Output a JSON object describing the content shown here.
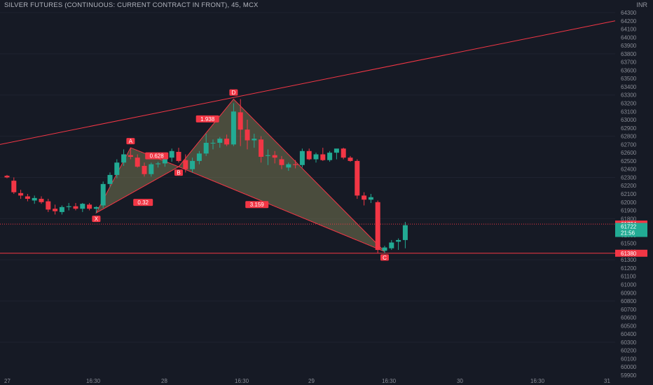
{
  "chart_data": {
    "type": "candlestick",
    "title": "SILVER FUTURES (CONTINUOUS: CURRENT CONTRACT IN FRONT), 45, MCX",
    "y_unit": "INR",
    "ylim": [
      59900,
      64300
    ],
    "y_ticks": [
      64300,
      64200,
      64100,
      64000,
      63900,
      63800,
      63700,
      63600,
      63500,
      63400,
      63300,
      63200,
      63100,
      63000,
      62900,
      62800,
      62700,
      62600,
      62500,
      62400,
      62300,
      62200,
      62100,
      62000,
      61900,
      61800,
      61700,
      61600,
      61500,
      61400,
      61300,
      61200,
      61100,
      61000,
      60900,
      60800,
      60700,
      60600,
      60500,
      60400,
      60300,
      60200,
      60100,
      60000,
      59900
    ],
    "x_ticks": [
      "27",
      "16:30",
      "28",
      "16:30",
      "29",
      "16:30",
      "30",
      "16:30",
      "31"
    ],
    "candles": [
      {
        "o": 62320,
        "h": 62330,
        "l": 62290,
        "c": 62300
      },
      {
        "o": 62260,
        "h": 62300,
        "l": 62100,
        "c": 62120
      },
      {
        "o": 62110,
        "h": 62150,
        "l": 62040,
        "c": 62080
      },
      {
        "o": 62070,
        "h": 62100,
        "l": 62010,
        "c": 62040
      },
      {
        "o": 62020,
        "h": 62080,
        "l": 61980,
        "c": 62050
      },
      {
        "o": 62040,
        "h": 62070,
        "l": 61980,
        "c": 62000
      },
      {
        "o": 62010,
        "h": 62040,
        "l": 61880,
        "c": 61910
      },
      {
        "o": 61920,
        "h": 61970,
        "l": 61850,
        "c": 61890
      },
      {
        "o": 61880,
        "h": 61960,
        "l": 61850,
        "c": 61940
      },
      {
        "o": 61940,
        "h": 61990,
        "l": 61900,
        "c": 61950
      },
      {
        "o": 61950,
        "h": 61990,
        "l": 61900,
        "c": 61920
      },
      {
        "o": 61920,
        "h": 61990,
        "l": 61880,
        "c": 61980
      },
      {
        "o": 61970,
        "h": 61990,
        "l": 61900,
        "c": 61920
      },
      {
        "o": 61920,
        "h": 61950,
        "l": 61870,
        "c": 61940
      },
      {
        "o": 61960,
        "h": 62250,
        "l": 61930,
        "c": 62220
      },
      {
        "o": 62220,
        "h": 62360,
        "l": 62180,
        "c": 62330
      },
      {
        "o": 62330,
        "h": 62520,
        "l": 62290,
        "c": 62480
      },
      {
        "o": 62480,
        "h": 62640,
        "l": 62440,
        "c": 62580
      },
      {
        "o": 62570,
        "h": 62660,
        "l": 62520,
        "c": 62550
      },
      {
        "o": 62540,
        "h": 62580,
        "l": 62420,
        "c": 62430
      },
      {
        "o": 62440,
        "h": 62480,
        "l": 62310,
        "c": 62340
      },
      {
        "o": 62340,
        "h": 62480,
        "l": 62310,
        "c": 62460
      },
      {
        "o": 62460,
        "h": 62490,
        "l": 62420,
        "c": 62470
      },
      {
        "o": 62470,
        "h": 62580,
        "l": 62430,
        "c": 62540
      },
      {
        "o": 62540,
        "h": 62650,
        "l": 62490,
        "c": 62620
      },
      {
        "o": 62610,
        "h": 62660,
        "l": 62480,
        "c": 62500
      },
      {
        "o": 62510,
        "h": 62580,
        "l": 62360,
        "c": 62400
      },
      {
        "o": 62400,
        "h": 62540,
        "l": 62360,
        "c": 62500
      },
      {
        "o": 62500,
        "h": 62620,
        "l": 62460,
        "c": 62590
      },
      {
        "o": 62590,
        "h": 62830,
        "l": 62560,
        "c": 62720
      },
      {
        "o": 62720,
        "h": 62760,
        "l": 62640,
        "c": 62720
      },
      {
        "o": 62720,
        "h": 62790,
        "l": 62660,
        "c": 62770
      },
      {
        "o": 62770,
        "h": 62820,
        "l": 62680,
        "c": 62700
      },
      {
        "o": 62700,
        "h": 63200,
        "l": 62680,
        "c": 63100
      },
      {
        "o": 63090,
        "h": 63250,
        "l": 62680,
        "c": 62880
      },
      {
        "o": 62880,
        "h": 63000,
        "l": 62640,
        "c": 62750
      },
      {
        "o": 62750,
        "h": 62830,
        "l": 62660,
        "c": 62770
      },
      {
        "o": 62760,
        "h": 62800,
        "l": 62480,
        "c": 62550
      },
      {
        "o": 62560,
        "h": 62640,
        "l": 62450,
        "c": 62570
      },
      {
        "o": 62570,
        "h": 62620,
        "l": 62470,
        "c": 62540
      },
      {
        "o": 62520,
        "h": 62560,
        "l": 62400,
        "c": 62450
      },
      {
        "o": 62420,
        "h": 62480,
        "l": 62380,
        "c": 62460
      },
      {
        "o": 62460,
        "h": 62510,
        "l": 62410,
        "c": 62450
      },
      {
        "o": 62450,
        "h": 62650,
        "l": 62420,
        "c": 62620
      },
      {
        "o": 62620,
        "h": 62650,
        "l": 62510,
        "c": 62520
      },
      {
        "o": 62520,
        "h": 62600,
        "l": 62480,
        "c": 62580
      },
      {
        "o": 62580,
        "h": 62660,
        "l": 62500,
        "c": 62510
      },
      {
        "o": 62510,
        "h": 62620,
        "l": 62490,
        "c": 62600
      },
      {
        "o": 62600,
        "h": 62640,
        "l": 62520,
        "c": 62650
      },
      {
        "o": 62650,
        "h": 62660,
        "l": 62520,
        "c": 62540
      },
      {
        "o": 62540,
        "h": 62560,
        "l": 62490,
        "c": 62500
      },
      {
        "o": 62500,
        "h": 62520,
        "l": 62040,
        "c": 62080
      },
      {
        "o": 62080,
        "h": 62120,
        "l": 61960,
        "c": 62030
      },
      {
        "o": 62030,
        "h": 62100,
        "l": 61990,
        "c": 62060
      },
      {
        "o": 62000,
        "h": 62020,
        "l": 61380,
        "c": 61420
      },
      {
        "o": 61410,
        "h": 61470,
        "l": 61380,
        "c": 61450
      },
      {
        "o": 61440,
        "h": 61540,
        "l": 61420,
        "c": 61510
      },
      {
        "o": 61520,
        "h": 61560,
        "l": 61420,
        "c": 61540
      },
      {
        "o": 61540,
        "h": 61760,
        "l": 61440,
        "c": 61720
      }
    ],
    "pattern_points": [
      {
        "label": "X",
        "candle": 13,
        "price": 61870
      },
      {
        "label": "A",
        "candle": 18,
        "price": 62660
      },
      {
        "label": "B",
        "candle": 25,
        "price": 62430
      },
      {
        "label": "D",
        "candle": 33,
        "price": 63250
      },
      {
        "label": "C",
        "candle": 55,
        "price": 61400
      }
    ],
    "ratio_labels": [
      {
        "text": "0.32",
        "near": "XB"
      },
      {
        "text": "0.628",
        "near": "AB"
      },
      {
        "text": "1.938",
        "near": "BD"
      },
      {
        "text": "3.159",
        "near": "BC"
      }
    ],
    "trendline": {
      "from_price": 62700,
      "to_price": 64200
    },
    "levels": [
      {
        "price": 61734,
        "label": "61734",
        "color": "#f23645",
        "style": "dotted"
      },
      {
        "price": 61380,
        "label": "61380",
        "color": "#f23645",
        "style": "solid"
      }
    ],
    "last_price": {
      "value": "61722",
      "countdown": "21:56",
      "color": "#22ab94"
    },
    "colors": {
      "up": "#22ab94",
      "down": "#f23645",
      "pattern_fill": "#8a8a5c",
      "line": "#f23645"
    }
  }
}
